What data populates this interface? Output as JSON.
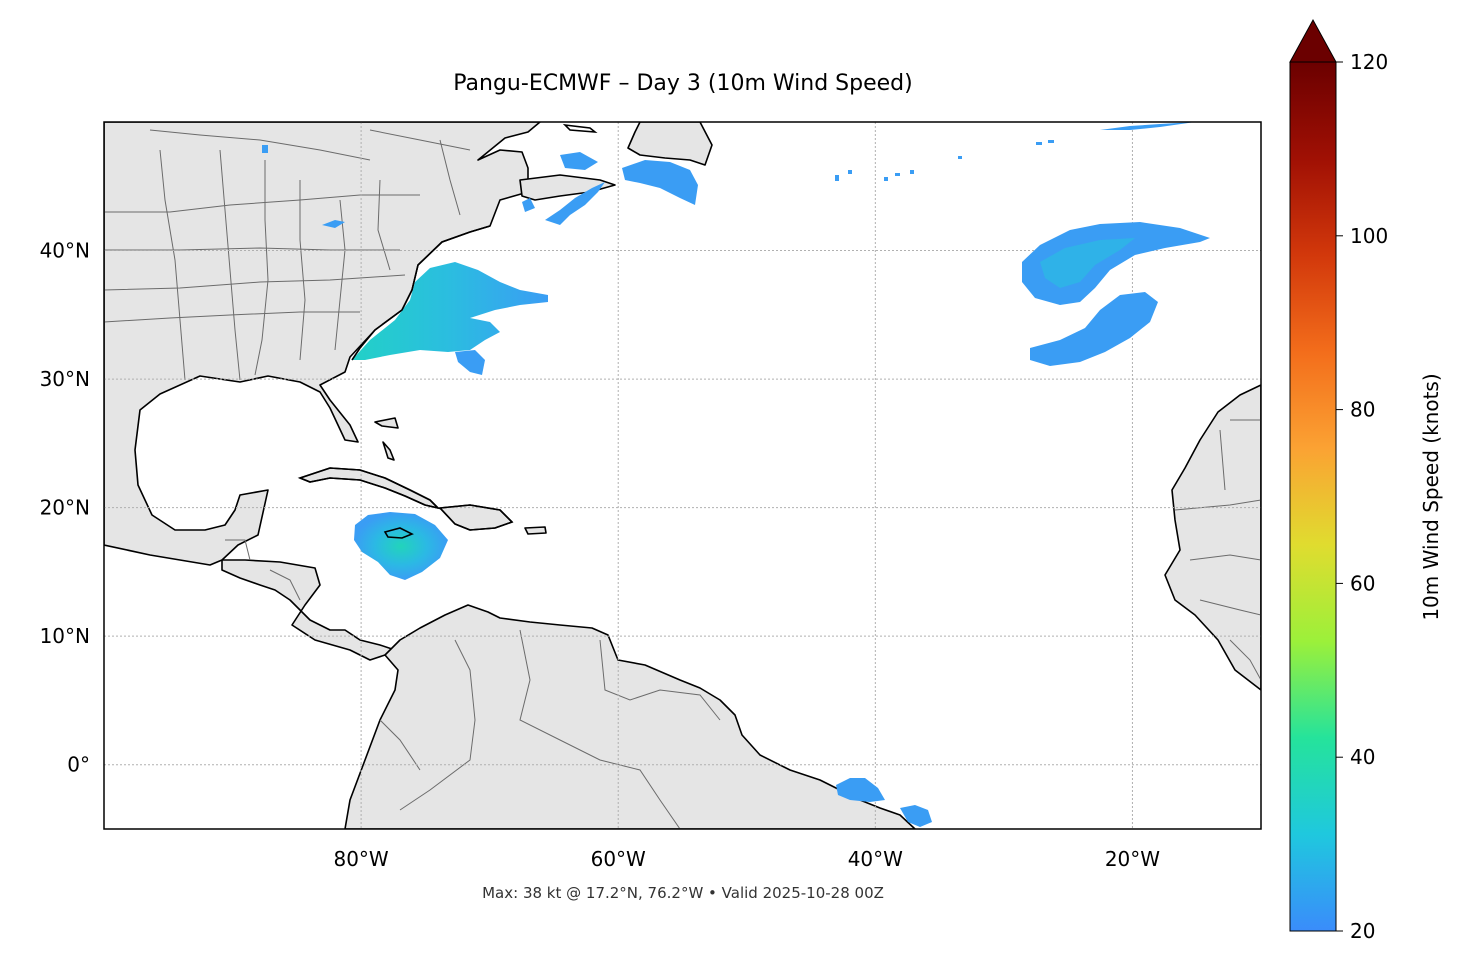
{
  "title": "Pangu-ECMWF – Day 3 (10m Wind Speed)",
  "footer": "Max: 38 kt @ 17.2°N, 76.2°W • Valid 2025-10-28 00Z",
  "map": {
    "lon_range": [
      -100,
      -10
    ],
    "lat_range": [
      -5,
      50
    ],
    "lat_ticks": [
      {
        "value": 40,
        "label": "40°N"
      },
      {
        "value": 30,
        "label": "30°N"
      },
      {
        "value": 20,
        "label": "20°N"
      },
      {
        "value": 10,
        "label": "10°N"
      },
      {
        "value": 0,
        "label": "0°"
      }
    ],
    "lon_ticks": [
      {
        "value": -80,
        "label": "80°W"
      },
      {
        "value": -60,
        "label": "60°W"
      },
      {
        "value": -40,
        "label": "40°W"
      },
      {
        "value": -20,
        "label": "20°W"
      }
    ],
    "gridlines": true,
    "land_color": "#e5e5e5",
    "ocean_color": "#ffffff"
  },
  "wind_features": [
    {
      "name": "US East Coast",
      "color": "#2fb6e6"
    },
    {
      "name": "Jamaica storm",
      "max_kt": 38,
      "lat": 17.2,
      "lon": -76.2,
      "color": "#22d4bb"
    },
    {
      "name": "Azores system",
      "color": "#3a9df4"
    },
    {
      "name": "Gulf of St. Lawrence",
      "color": "#3a9df4"
    },
    {
      "name": "Equatorial Atlantic",
      "color": "#3a9df4"
    }
  ],
  "colorbar": {
    "label": "10m Wind Speed (knots)",
    "min": 20,
    "max": 120,
    "extend": "max",
    "ticks": [
      "20",
      "40",
      "60",
      "80",
      "100",
      "120"
    ],
    "colors": [
      "#3a8cfb",
      "#1fc8de",
      "#25e39b",
      "#9cf03a",
      "#e0dc2f",
      "#fba233",
      "#f36d1b",
      "#d2380b",
      "#a01004",
      "#6b0000"
    ]
  }
}
